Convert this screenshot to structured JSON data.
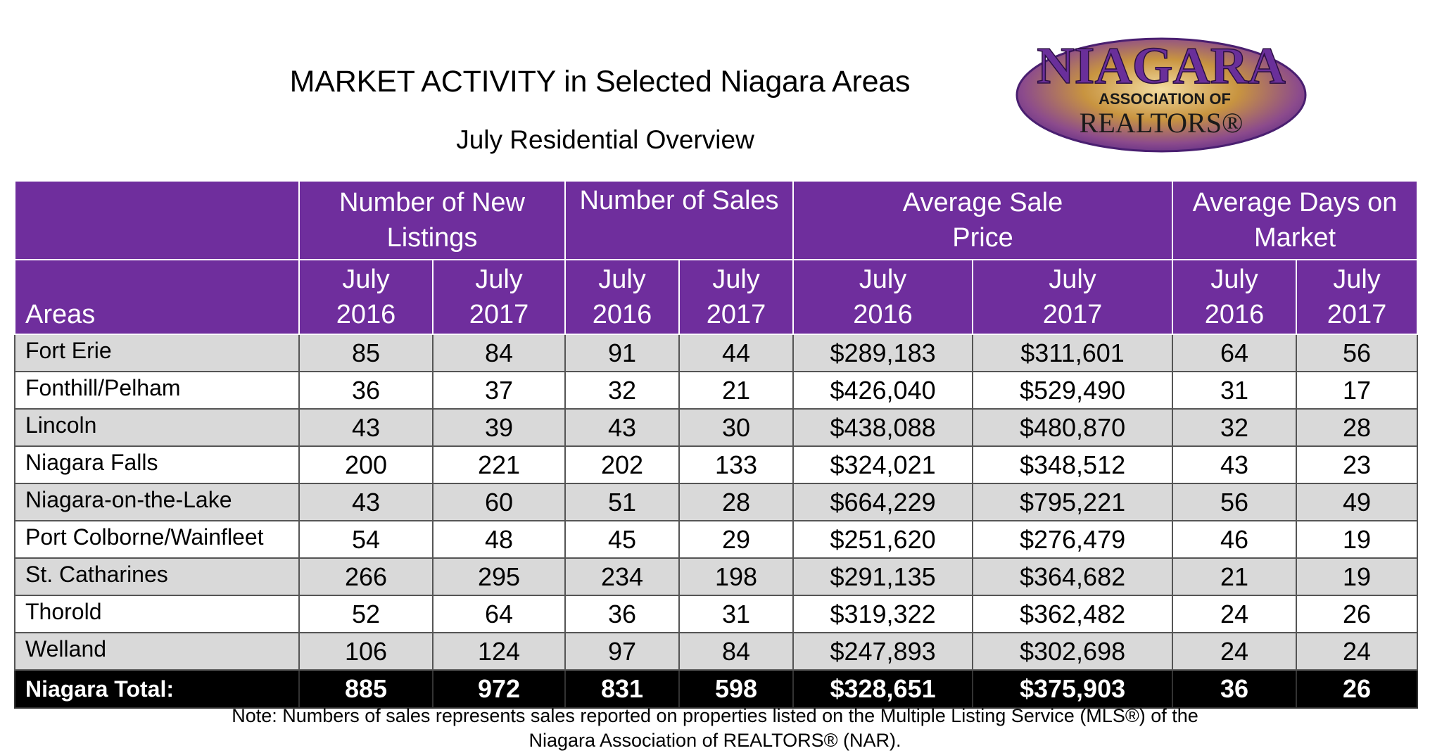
{
  "header": {
    "title": "MARKET ACTIVITY in Selected Niagara Areas",
    "subtitle": "July Residential Overview"
  },
  "logo": {
    "name_text": "NIAGARA",
    "assoc_text": "ASSOCIATION OF",
    "realtors_text": "REALTORS®",
    "colors": {
      "purple": "#5b2a86",
      "gold": "#b8862b"
    }
  },
  "table": {
    "group_headers": [
      "Number of New Listings",
      "Number of Sales",
      "Average Sale Price",
      "Average Days on Market"
    ],
    "group_headers_lines": [
      [
        "Number of New",
        "Listings"
      ],
      [
        "Number of Sales",
        ""
      ],
      [
        "Average Sale",
        "Price"
      ],
      [
        "Average Days on",
        "Market"
      ]
    ],
    "areas_label": "Areas",
    "period_lines": [
      [
        "July",
        "2016"
      ],
      [
        "July",
        "2017"
      ],
      [
        "July",
        "2016"
      ],
      [
        "July",
        "2017"
      ],
      [
        "July",
        "2016"
      ],
      [
        "July",
        "2017"
      ],
      [
        "July",
        "2016"
      ],
      [
        "July",
        "2017"
      ]
    ],
    "rows": [
      {
        "area": "Fort Erie",
        "values": [
          "85",
          "84",
          "91",
          "44",
          "$289,183",
          "$311,601",
          "64",
          "56"
        ]
      },
      {
        "area": "Fonthill/Pelham",
        "values": [
          "36",
          "37",
          "32",
          "21",
          "$426,040",
          "$529,490",
          "31",
          "17"
        ]
      },
      {
        "area": "Lincoln",
        "values": [
          "43",
          "39",
          "43",
          "30",
          "$438,088",
          "$480,870",
          "32",
          "28"
        ]
      },
      {
        "area": "Niagara Falls",
        "values": [
          "200",
          "221",
          "202",
          "133",
          "$324,021",
          "$348,512",
          "43",
          "23"
        ]
      },
      {
        "area": "Niagara-on-the-Lake",
        "values": [
          "43",
          "60",
          "51",
          "28",
          "$664,229",
          "$795,221",
          "56",
          "49"
        ]
      },
      {
        "area": "Port Colborne/Wainfleet",
        "values": [
          "54",
          "48",
          "45",
          "29",
          "$251,620",
          "$276,479",
          "46",
          "19"
        ]
      },
      {
        "area": "St. Catharines",
        "values": [
          "266",
          "295",
          "234",
          "198",
          "$291,135",
          "$364,682",
          "21",
          "19"
        ]
      },
      {
        "area": "Thorold",
        "values": [
          "52",
          "64",
          "36",
          "31",
          "$319,322",
          "$362,482",
          "24",
          "26"
        ]
      },
      {
        "area": "Welland",
        "values": [
          "106",
          "124",
          "97",
          "84",
          "$247,893",
          "$302,698",
          "24",
          "24"
        ]
      }
    ],
    "total": {
      "area": "Niagara Total:",
      "values": [
        "885",
        "972",
        "831",
        "598",
        "$328,651",
        "$375,903",
        "36",
        "26"
      ]
    }
  },
  "note": {
    "line1": "Note: Numbers of sales represents sales reported on properties listed on the Multiple Listing Service (MLS®) of the",
    "line2": "Niagara Association of REALTORS® (NAR)."
  },
  "colors": {
    "header_bg": "#6f2e9d",
    "row_shade": "#d9d9d9",
    "total_bg": "#000000"
  }
}
